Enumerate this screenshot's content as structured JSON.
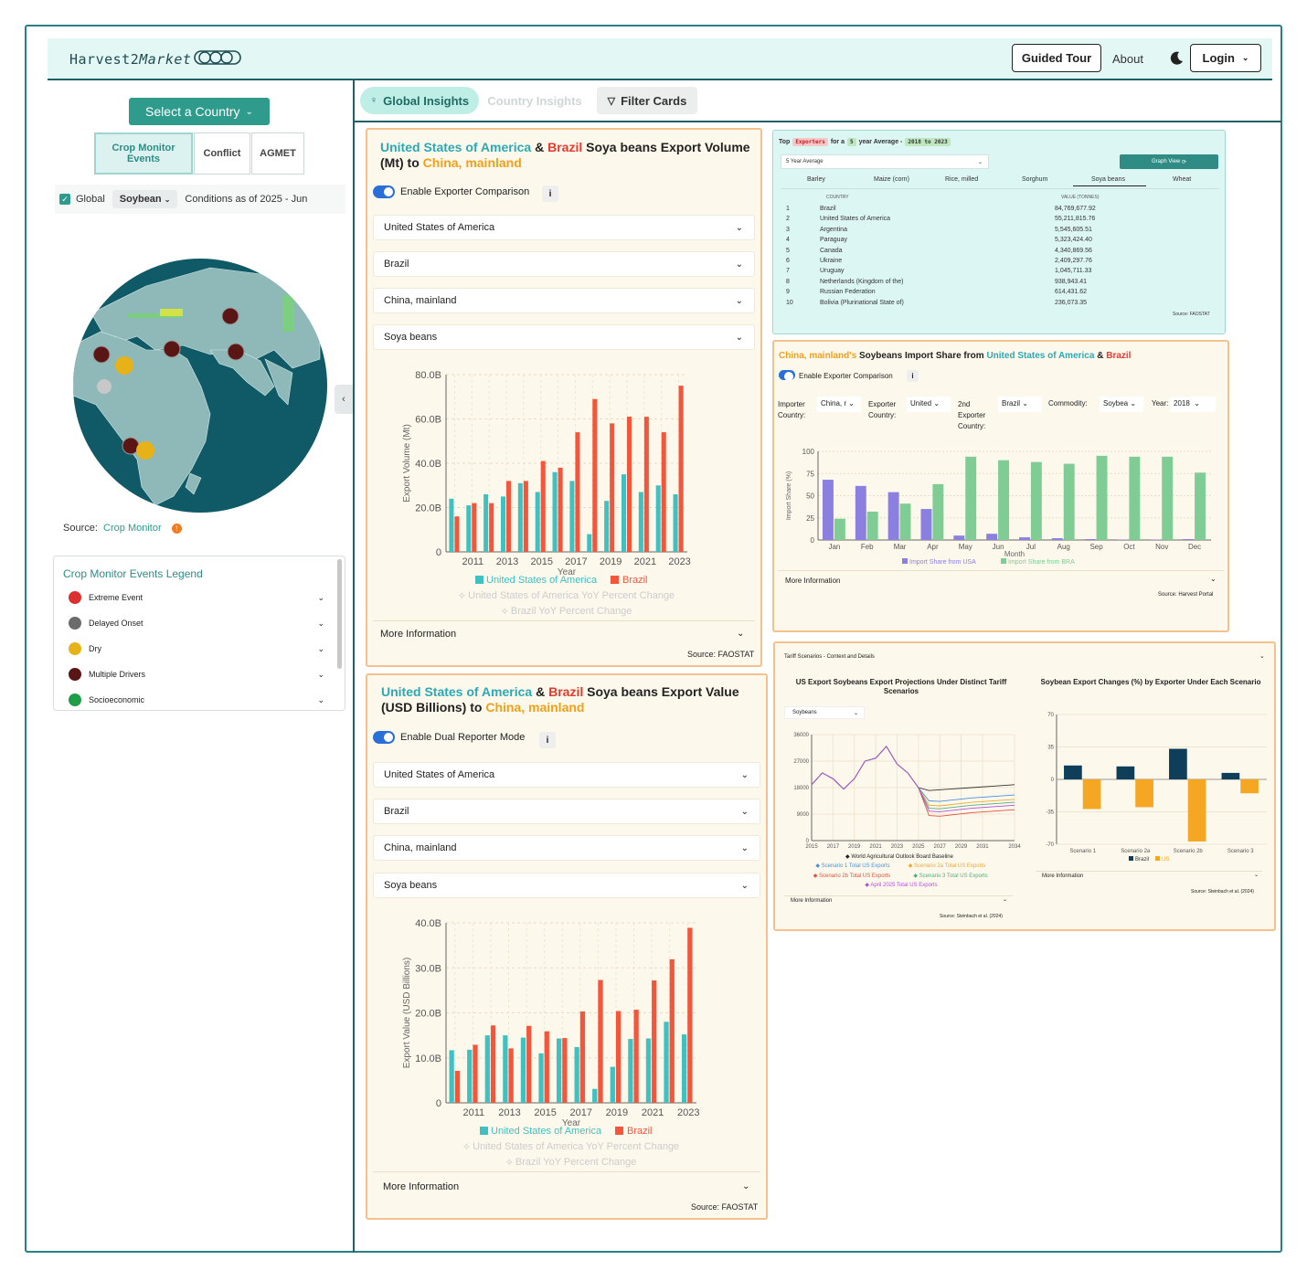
{
  "header": {
    "logo_text": "Harvest2",
    "logo_italic": "Market",
    "guided_tour": "Guided Tour",
    "about": "About",
    "login": "Login"
  },
  "left": {
    "select_country": "Select a Country",
    "tabs": [
      "Crop Monitor Events",
      "Conflict",
      "AGMET"
    ],
    "global_label": "Global",
    "crop_select": "Soybean",
    "conditions": "Conditions as of 2025 - Jun",
    "source_label": "Source:",
    "source_link": "Crop Monitor",
    "legend_title": "Crop Monitor Events Legend",
    "legend_items": [
      {
        "label": "Extreme Event",
        "color": "#dc2f2f"
      },
      {
        "label": "Delayed Onset",
        "color": "#6b6b6b"
      },
      {
        "label": "Dry",
        "color": "#e6b218"
      },
      {
        "label": "Multiple Drivers",
        "color": "#5a1515"
      },
      {
        "label": "Socioeconomic",
        "color": "#1f9e48"
      }
    ]
  },
  "main_tabs": {
    "global": "Global Insights",
    "country": "Country Insights",
    "filter": "Filter Cards"
  },
  "volume_card": {
    "title_c1": "United States of America",
    "title_amp": " & ",
    "title_c2": "Brazil",
    "title_mid": " Soya beans Export Volume (Mt) to ",
    "title_c3": "China, mainland",
    "toggle_label": "Enable Exporter Comparison",
    "dropdowns": [
      "United States of America",
      "Brazil",
      "China, mainland",
      "Soya beans"
    ],
    "more_info": "More Information",
    "source": "Source: FAOSTAT"
  },
  "value_card": {
    "title_c1": "United States of America",
    "title_amp": " & ",
    "title_c2": "Brazil",
    "title_mid": " Soya beans Export Value (USD Billions) to ",
    "title_c3": "China, mainland",
    "toggle_label": "Enable Dual Reporter Mode",
    "dropdowns": [
      "United States of America",
      "Brazil",
      "China, mainland",
      "Soya beans"
    ],
    "more_info": "More Information",
    "source": "Source: FAOSTAT"
  },
  "top_exporters": {
    "prefix": "Top",
    "badge": "Exporters",
    "for_a": "for a",
    "years": "5",
    "year_avg": "year Average -",
    "range": "2018 to 2023",
    "avg_select": "5 Year Average",
    "graph_view": "Graph View",
    "crops": [
      "Barley",
      "Maize (corn)",
      "Rice, milled",
      "Sorghum",
      "Soya beans",
      "Wheat"
    ],
    "col_country": "COUNTRY",
    "col_value": "VALUE (TONNES)",
    "rows": [
      {
        "rank": "1",
        "country": "Brazil",
        "value": "84,769,677.92"
      },
      {
        "rank": "2",
        "country": "United States of America",
        "value": "55,211,815.76"
      },
      {
        "rank": "3",
        "country": "Argentina",
        "value": "5,545,605.51"
      },
      {
        "rank": "4",
        "country": "Paraguay",
        "value": "5,323,424.40"
      },
      {
        "rank": "5",
        "country": "Canada",
        "value": "4,340,869.56"
      },
      {
        "rank": "6",
        "country": "Ukraine",
        "value": "2,409,297.76"
      },
      {
        "rank": "7",
        "country": "Uruguay",
        "value": "1,045,711.33"
      },
      {
        "rank": "8",
        "country": "Netherlands (Kingdom of the)",
        "value": "938,943.41"
      },
      {
        "rank": "9",
        "country": "Russian Federation",
        "value": "614,431.62"
      },
      {
        "rank": "10",
        "country": "Bolivia (Plurinational State of)",
        "value": "236,073.35"
      }
    ],
    "source": "Source: FAOSTAT"
  },
  "import_share_card": {
    "title_c1": "China, mainland's",
    "title_mid": " Soybeans Import Share from ",
    "title_c2": "United States of America",
    "title_amp": " & ",
    "title_c3": "Brazil",
    "toggle_label": "Enable Exporter Comparison",
    "importer_label": "Importer Country:",
    "importer_val": "China, r",
    "exporter_label": "Exporter Country:",
    "exporter_val": "United",
    "exporter2_label": "2nd Exporter Country:",
    "exporter2_val": "Brazil",
    "commodity_label": "Commodity:",
    "commodity_val": "Soybea",
    "year_label": "Year:",
    "year_val": "2018",
    "more_info": "More Information",
    "source": "Source: Harvest Portal"
  },
  "tariff_card": {
    "header": "Tariff Scenarios - Context and Details",
    "left_title": "US Export Soybeans Export Projections Under Distinct Tariff Scenarios",
    "right_title": "Soybean Export Changes (%) by Exporter Under Each Scenario",
    "select": "Soybeans",
    "more_info": "More Information",
    "source": "Source: Steinbach et al. (2024)"
  },
  "chart_data": [
    {
      "type": "bar",
      "title": "Soya beans Export Volume (Mt)",
      "xlabel": "Year",
      "ylabel": "Export Volume (Mt)",
      "x_ticks": [
        "2011",
        "2013",
        "2015",
        "2017",
        "2019",
        "2021",
        "2023"
      ],
      "y_ticks": [
        "0",
        "20.0B",
        "40.0B",
        "60.0B",
        "80.0B"
      ],
      "ylim": [
        0,
        80
      ],
      "categories": [
        "2010",
        "2011",
        "2012",
        "2013",
        "2014",
        "2015",
        "2016",
        "2017",
        "2018",
        "2019",
        "2020",
        "2021",
        "2022",
        "2023"
      ],
      "series": [
        {
          "name": "United States of America",
          "color": "#3fc1c1",
          "values": [
            24,
            21,
            26,
            25,
            31,
            27,
            36,
            32,
            8,
            23,
            35,
            27,
            30,
            26
          ]
        },
        {
          "name": "Brazil",
          "color": "#f4553b",
          "values": [
            16,
            22,
            22,
            32,
            32,
            41,
            38,
            54,
            69,
            58,
            61,
            61,
            54,
            75
          ]
        }
      ],
      "legend_extra": [
        "United States of America YoY Percent Change",
        "Brazil YoY Percent Change"
      ]
    },
    {
      "type": "bar",
      "title": "Soya beans Export Value (USD Billions)",
      "xlabel": "Year",
      "ylabel": "Export Value (USD Billions)",
      "x_ticks": [
        "2011",
        "2013",
        "2015",
        "2017",
        "2019",
        "2021",
        "2023"
      ],
      "y_ticks": [
        "0",
        "10.0B",
        "20.0B",
        "30.0B",
        "40.0B"
      ],
      "ylim": [
        0,
        40
      ],
      "categories": [
        "2010",
        "2011",
        "2012",
        "2013",
        "2014",
        "2015",
        "2016",
        "2017",
        "2018",
        "2019",
        "2020",
        "2021",
        "2022",
        "2023"
      ],
      "series": [
        {
          "name": "United States of America",
          "color": "#3fc1c1",
          "values": [
            11.7,
            11.8,
            15,
            15,
            14.5,
            11,
            14.3,
            12.4,
            3.1,
            8,
            14.2,
            14.3,
            18,
            15.2
          ]
        },
        {
          "name": "Brazil",
          "color": "#f4553b",
          "values": [
            7.1,
            12.9,
            17.2,
            12.1,
            17.1,
            15.9,
            14.4,
            20.3,
            27.3,
            20.4,
            20.7,
            27.2,
            31.9,
            38.9
          ]
        }
      ],
      "legend_extra": [
        "United States of America YoY Percent Change",
        "Brazil YoY Percent Change"
      ]
    },
    {
      "type": "bar",
      "title": "Soybeans Import Share",
      "xlabel": "Month",
      "ylabel": "Import Share (%)",
      "ylim": [
        0,
        100
      ],
      "y_ticks": [
        "0",
        "25",
        "50",
        "75",
        "100"
      ],
      "categories": [
        "Jan",
        "Feb",
        "Mar",
        "Apr",
        "May",
        "Jun",
        "Jul",
        "Aug",
        "Sep",
        "Oct",
        "Nov",
        "Dec"
      ],
      "series": [
        {
          "name": "Import Share from USA",
          "color": "#8b7fe0",
          "values": [
            68,
            61,
            54,
            35,
            5,
            7,
            3,
            2,
            1,
            0.5,
            0.5,
            1
          ]
        },
        {
          "name": "Import Share from BRA",
          "color": "#7fcc94",
          "values": [
            24,
            32,
            41,
            63,
            94,
            90,
            88,
            86,
            95,
            94,
            94,
            76
          ]
        }
      ]
    },
    {
      "type": "line",
      "title": "US Export Soybeans Export Projections Under Distinct Tariff Scenarios",
      "x_ticks": [
        "2015",
        "2017",
        "2019",
        "2021",
        "2023",
        "2025",
        "2027",
        "2029",
        "2031",
        "2034"
      ],
      "y_ticks": [
        "0",
        "9000",
        "18000",
        "27000",
        "36000"
      ],
      "ylim": [
        0,
        36000
      ],
      "series": [
        {
          "name": "World Agricultural Outlook Board Baseline",
          "color": "#333333"
        },
        {
          "name": "Scenario 1 Total US Exports",
          "color": "#4a90d9"
        },
        {
          "name": "Scenario 2a Total US Exports",
          "color": "#f0a830"
        },
        {
          "name": "Scenario 2b Total US Exports",
          "color": "#e8503c"
        },
        {
          "name": "Scenario 3 Total US Exports",
          "color": "#4fb07a"
        },
        {
          "name": "April 2025 Total US Exports",
          "color": "#b050e0"
        }
      ]
    },
    {
      "type": "bar",
      "title": "Soybean Export Changes (%) by Exporter Under Each Scenario",
      "categories": [
        "Scenario 1",
        "Scenario 2a",
        "Scenario 2b",
        "Scenario 3"
      ],
      "y_ticks": [
        "-70",
        "-35",
        "0",
        "35",
        "70"
      ],
      "ylim": [
        -70,
        70
      ],
      "series": [
        {
          "name": "Brazil",
          "color": "#0e3e5a",
          "values": [
            15,
            14,
            33,
            7
          ]
        },
        {
          "name": "US",
          "color": "#f5a623",
          "values": [
            -32,
            -30,
            -67,
            -15
          ]
        }
      ]
    }
  ]
}
